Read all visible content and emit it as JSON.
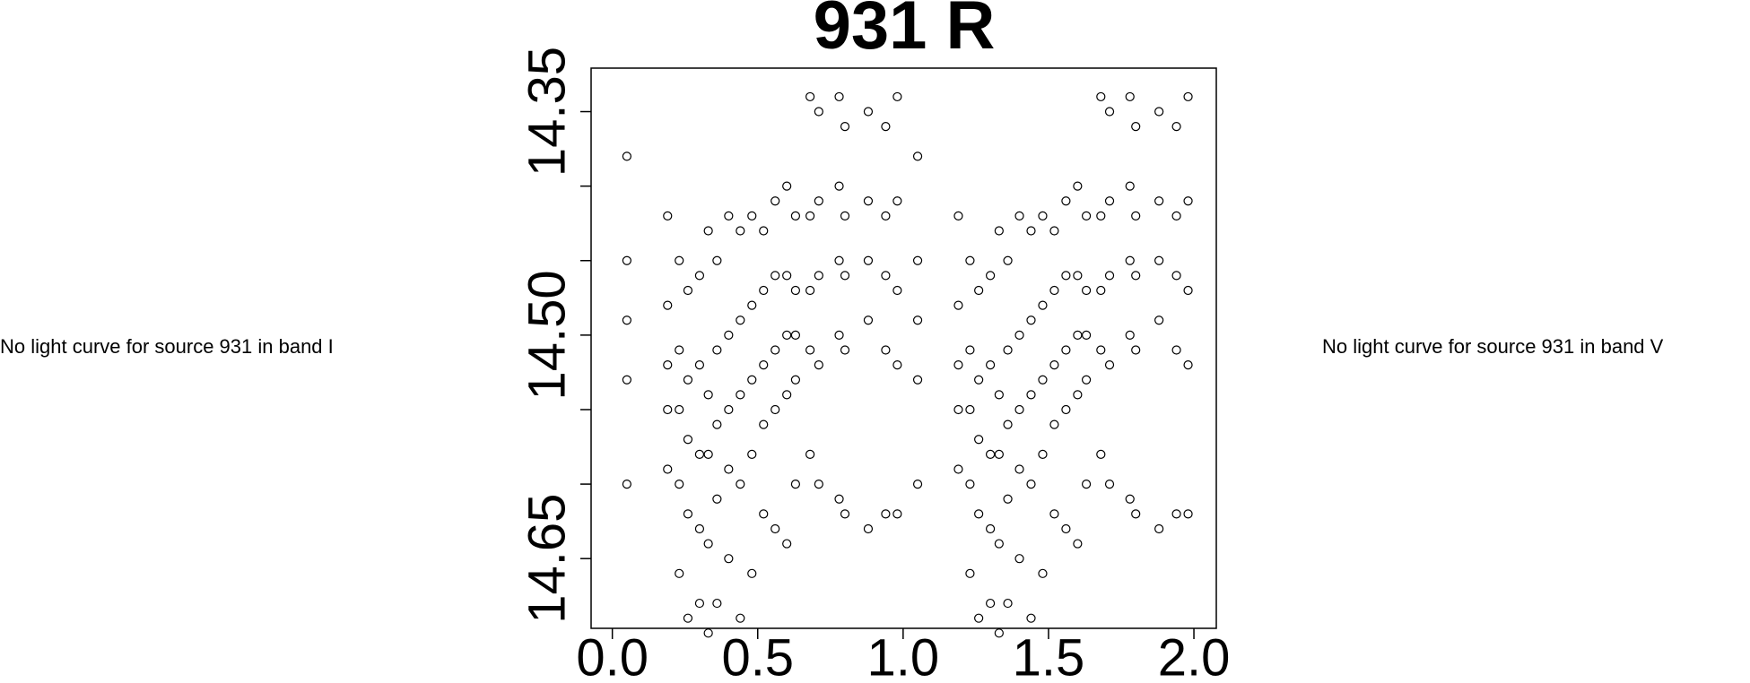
{
  "chart_data": {
    "type": "scatter",
    "title": "931 R",
    "x": [
      0.05,
      0.05,
      0.05,
      0.05,
      0.05,
      0.19,
      0.19,
      0.19,
      0.19,
      0.19,
      0.23,
      0.23,
      0.23,
      0.23,
      0.23,
      0.26,
      0.26,
      0.26,
      0.26,
      0.26,
      0.3,
      0.3,
      0.3,
      0.3,
      0.3,
      0.33,
      0.33,
      0.33,
      0.33,
      0.33,
      0.36,
      0.36,
      0.36,
      0.36,
      0.36,
      0.4,
      0.4,
      0.4,
      0.4,
      0.4,
      0.44,
      0.44,
      0.44,
      0.44,
      0.44,
      0.48,
      0.48,
      0.48,
      0.48,
      0.48,
      0.52,
      0.52,
      0.52,
      0.52,
      0.52,
      0.56,
      0.56,
      0.56,
      0.56,
      0.56,
      0.6,
      0.6,
      0.6,
      0.6,
      0.6,
      0.63,
      0.63,
      0.63,
      0.63,
      0.63,
      0.68,
      0.68,
      0.68,
      0.68,
      0.68,
      0.71,
      0.71,
      0.71,
      0.71,
      0.71,
      0.78,
      0.78,
      0.78,
      0.78,
      0.78,
      0.8,
      0.8,
      0.8,
      0.8,
      0.8,
      0.88,
      0.88,
      0.88,
      0.88,
      0.88,
      0.94,
      0.94,
      0.94,
      0.94,
      0.94,
      0.98,
      0.98,
      0.98,
      0.98,
      0.98,
      1.05,
      1.05,
      1.05,
      1.05,
      1.05,
      1.19,
      1.19,
      1.19,
      1.19,
      1.19,
      1.23,
      1.23,
      1.23,
      1.23,
      1.23,
      1.26,
      1.26,
      1.26,
      1.26,
      1.26,
      1.3,
      1.3,
      1.3,
      1.3,
      1.3,
      1.33,
      1.33,
      1.33,
      1.33,
      1.33,
      1.36,
      1.36,
      1.36,
      1.36,
      1.36,
      1.4,
      1.4,
      1.4,
      1.4,
      1.4,
      1.44,
      1.44,
      1.44,
      1.44,
      1.44,
      1.48,
      1.48,
      1.48,
      1.48,
      1.48,
      1.52,
      1.52,
      1.52,
      1.52,
      1.52,
      1.56,
      1.56,
      1.56,
      1.56,
      1.56,
      1.6,
      1.6,
      1.6,
      1.6,
      1.6,
      1.63,
      1.63,
      1.63,
      1.63,
      1.63,
      1.68,
      1.68,
      1.68,
      1.68,
      1.68,
      1.71,
      1.71,
      1.71,
      1.71,
      1.71,
      1.78,
      1.78,
      1.78,
      1.78,
      1.78,
      1.8,
      1.8,
      1.8,
      1.8,
      1.8,
      1.88,
      1.88,
      1.88,
      1.88,
      1.88,
      1.94,
      1.94,
      1.94,
      1.94,
      1.94,
      1.98,
      1.98,
      1.98,
      1.98,
      1.98
    ],
    "values": [
      14.38,
      14.45,
      14.49,
      14.53,
      14.6,
      14.42,
      14.48,
      14.52,
      14.55,
      14.59,
      14.45,
      14.51,
      14.55,
      14.6,
      14.66,
      14.47,
      14.53,
      14.57,
      14.62,
      14.69,
      14.46,
      14.52,
      14.58,
      14.63,
      14.68,
      14.43,
      14.54,
      14.58,
      14.64,
      14.7,
      14.45,
      14.51,
      14.56,
      14.61,
      14.68,
      14.42,
      14.5,
      14.55,
      14.59,
      14.65,
      14.43,
      14.49,
      14.54,
      14.6,
      14.69,
      14.42,
      14.48,
      14.53,
      14.58,
      14.66,
      14.43,
      14.47,
      14.52,
      14.56,
      14.62,
      14.41,
      14.46,
      14.51,
      14.55,
      14.63,
      14.4,
      14.46,
      14.5,
      14.54,
      14.64,
      14.42,
      14.47,
      14.5,
      14.53,
      14.6,
      14.34,
      14.42,
      14.47,
      14.51,
      14.58,
      14.35,
      14.41,
      14.46,
      14.52,
      14.6,
      14.34,
      14.4,
      14.45,
      14.5,
      14.61,
      14.36,
      14.42,
      14.46,
      14.51,
      14.62,
      14.35,
      14.41,
      14.45,
      14.49,
      14.63,
      14.36,
      14.42,
      14.46,
      14.51,
      14.62,
      14.34,
      14.41,
      14.47,
      14.52,
      14.62,
      14.38,
      14.45,
      14.49,
      14.53,
      14.6,
      14.42,
      14.48,
      14.52,
      14.55,
      14.59,
      14.45,
      14.51,
      14.55,
      14.6,
      14.66,
      14.47,
      14.53,
      14.57,
      14.62,
      14.69,
      14.46,
      14.52,
      14.58,
      14.63,
      14.68,
      14.43,
      14.54,
      14.58,
      14.64,
      14.7,
      14.45,
      14.51,
      14.56,
      14.61,
      14.68,
      14.42,
      14.5,
      14.55,
      14.59,
      14.65,
      14.43,
      14.49,
      14.54,
      14.6,
      14.69,
      14.42,
      14.48,
      14.53,
      14.58,
      14.66,
      14.43,
      14.47,
      14.52,
      14.56,
      14.62,
      14.41,
      14.46,
      14.51,
      14.55,
      14.63,
      14.4,
      14.46,
      14.5,
      14.54,
      14.64,
      14.42,
      14.47,
      14.5,
      14.53,
      14.6,
      14.34,
      14.42,
      14.47,
      14.51,
      14.58,
      14.35,
      14.41,
      14.46,
      14.52,
      14.6,
      14.34,
      14.4,
      14.45,
      14.5,
      14.61,
      14.36,
      14.42,
      14.46,
      14.51,
      14.62,
      14.35,
      14.41,
      14.45,
      14.49,
      14.63,
      14.36,
      14.42,
      14.46,
      14.51,
      14.62,
      14.34,
      14.41,
      14.47,
      14.52,
      14.62
    ],
    "color": "#000000",
    "xlim": [
      -0.073,
      2.077
    ],
    "xticks": [
      {
        "value": 0,
        "label": "0.0"
      },
      0.5,
      {
        "value": 1,
        "label": "1.0"
      },
      1.5,
      {
        "value": 2,
        "label": "2.0"
      }
    ],
    "ylim": [
      14.6968,
      14.3208
    ],
    "yticks": [
      14.35,
      {
        "value": 14.5,
        "label": "14.50"
      },
      14.65
    ],
    "yminorticks": [
      14.4,
      14.45,
      14.55,
      14.6
    ]
  },
  "left_note": "No light curve for source 931 in band I",
  "right_note": "No light curve for source 931 in band V"
}
